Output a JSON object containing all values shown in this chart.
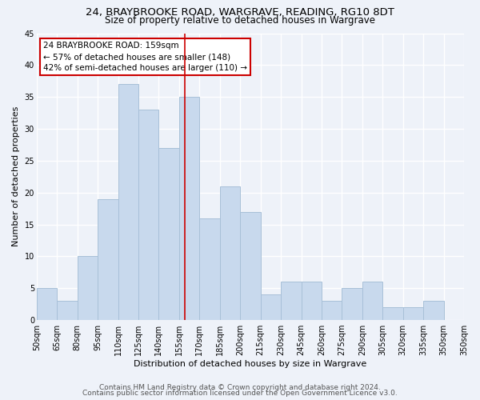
{
  "title": "24, BRAYBROOKE ROAD, WARGRAVE, READING, RG10 8DT",
  "subtitle": "Size of property relative to detached houses in Wargrave",
  "xlabel": "Distribution of detached houses by size in Wargrave",
  "ylabel": "Number of detached properties",
  "bin_labels": [
    "50sqm",
    "65sqm",
    "80sqm",
    "95sqm",
    "110sqm",
    "125sqm",
    "140sqm",
    "155sqm",
    "170sqm",
    "185sqm",
    "200sqm",
    "215sqm",
    "230sqm",
    "245sqm",
    "260sqm",
    "275sqm",
    "290sqm",
    "305sqm",
    "320sqm",
    "335sqm",
    "350sqm"
  ],
  "bin_edges": [
    50,
    65,
    80,
    95,
    110,
    125,
    140,
    155,
    170,
    185,
    200,
    215,
    230,
    245,
    260,
    275,
    290,
    305,
    320,
    335,
    350
  ],
  "values": [
    5,
    3,
    10,
    19,
    37,
    33,
    27,
    35,
    16,
    21,
    17,
    4,
    6,
    6,
    3,
    5,
    6,
    2,
    2,
    3,
    0
  ],
  "bar_color": "#c8d9ed",
  "bar_edge_color": "#a8c0d8",
  "vline_x": 159,
  "vline_color": "#cc0000",
  "annotation_line1": "24 BRAYBROOKE ROAD: 159sqm",
  "annotation_line2": "← 57% of detached houses are smaller (148)",
  "annotation_line3": "42% of semi-detached houses are larger (110) →",
  "annotation_box_color": "#ffffff",
  "annotation_box_edge": "#cc0000",
  "ylim": [
    0,
    45
  ],
  "yticks": [
    0,
    5,
    10,
    15,
    20,
    25,
    30,
    35,
    40,
    45
  ],
  "footer1": "Contains HM Land Registry data © Crown copyright and database right 2024.",
  "footer2": "Contains public sector information licensed under the Open Government Licence v3.0.",
  "bg_color": "#eef2f9",
  "plot_bg_color": "#eef2f9",
  "grid_color": "#ffffff",
  "title_fontsize": 9.5,
  "subtitle_fontsize": 8.5,
  "label_fontsize": 8,
  "tick_fontsize": 7,
  "annot_fontsize": 7.5,
  "footer_fontsize": 6.5
}
